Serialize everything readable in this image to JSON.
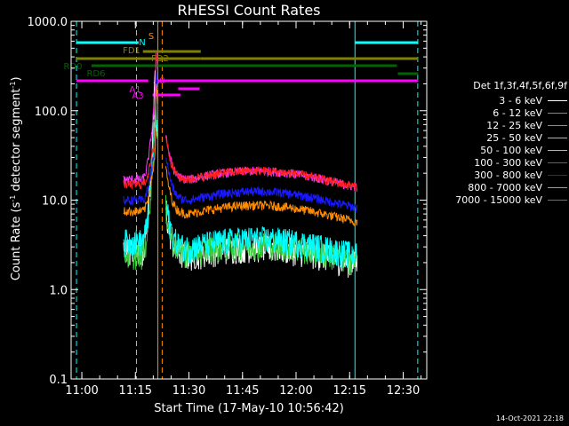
{
  "chart_data": {
    "type": "line",
    "title": "RHESSI Count Rates",
    "xlabel": "Start Time (17-May-10 10:56:42)",
    "ylabel_main": "Count Rate (s",
    "ylabel_sup1": "-1",
    "ylabel_mid": " detector segment",
    "ylabel_sup2": "-1",
    "ylabel_end": ")",
    "yscale": "log",
    "ylim": [
      0.1,
      1000.0
    ],
    "xlim_minutes": [
      10.95,
      12.61
    ],
    "y_ticks": [
      "0.1",
      "1.0",
      "10.0",
      "100.0",
      "1000.0"
    ],
    "x_ticks": [
      "11:00",
      "11:15",
      "11:30",
      "11:45",
      "12:00",
      "12:15",
      "12:30"
    ],
    "legend_title": "Det 1f,3f,4f,5f,6f,9f",
    "series": [
      {
        "name": "3 - 6 keV",
        "color": "#ffffff",
        "level_before": 2.8,
        "level_after": 2.4,
        "peak": 350
      },
      {
        "name": "6 - 12 keV",
        "color": "#ff33ff",
        "level_before": 17,
        "level_after": 17,
        "peak": 200
      },
      {
        "name": "12 - 25 keV",
        "color": "#33cc33",
        "level_before": 2.5,
        "level_after": 2.6,
        "peak": 150
      },
      {
        "name": "25 - 50 keV",
        "color": "#00ffff",
        "level_before": 3.5,
        "level_after": 3.0,
        "peak": 120
      },
      {
        "name": "50 - 100 keV",
        "color": "#cccc00",
        "level_before": 0,
        "level_after": 0,
        "peak": 0
      },
      {
        "name": "100 - 300 keV",
        "color": "#ff2020",
        "level_before": 15,
        "level_after": 17,
        "peak": 60
      },
      {
        "name": "300 - 800 keV",
        "color": "#1a1aff",
        "level_before": 10,
        "level_after": 10,
        "peak": 50
      },
      {
        "name": "800 - 7000 keV",
        "color": "#ff8c00",
        "level_before": 7.5,
        "level_after": 7.0,
        "peak": 40
      },
      {
        "name": "7000 - 15000 keV",
        "color": "#808000",
        "level_before": 0,
        "level_after": 0,
        "peak": 0
      }
    ],
    "attenuator_states": [
      {
        "label": "N",
        "color": "#00ffff"
      },
      {
        "label": "S",
        "color": "#ff8c00"
      },
      {
        "label": "FD1",
        "color": "#808000"
      },
      {
        "label": "FD2",
        "color": "#808000"
      },
      {
        "label": "RD0",
        "color": "#006400"
      },
      {
        "label": "RD6",
        "color": "#006400"
      },
      {
        "label": "A1",
        "color": "#ff00ff"
      },
      {
        "label": "A0",
        "color": "#ff00ff"
      },
      {
        "label": "A3",
        "color": "#ff00ff"
      }
    ],
    "timestamp": "14-Oct-2021 22:18"
  }
}
